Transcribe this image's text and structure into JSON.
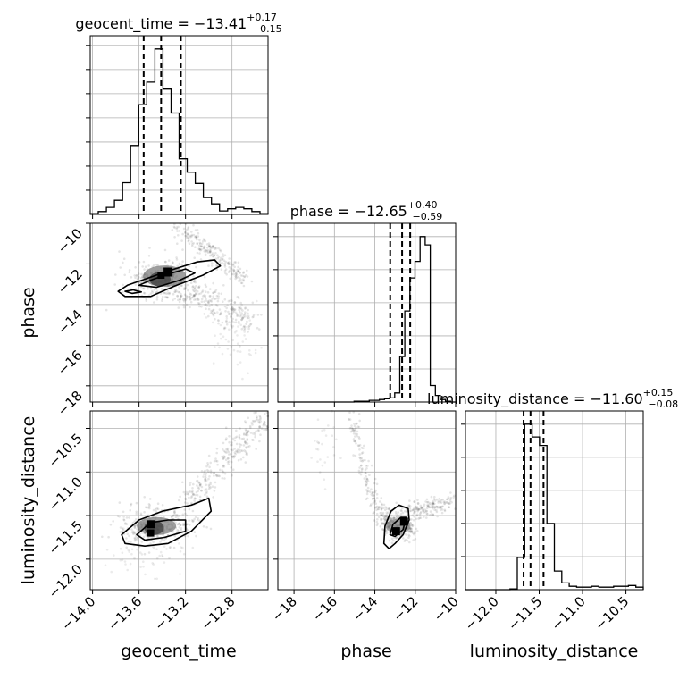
{
  "chart_data": {
    "type": "corner",
    "grid": true,
    "parameters": [
      {
        "name": "geocent_time",
        "median": -13.41,
        "err_plus": 0.17,
        "err_minus": 0.15,
        "quantiles": [
          -13.56,
          -13.41,
          -13.24
        ],
        "title_main": "geocent_time = −13.41",
        "title_plus": "+0.17",
        "title_minus": "−0.15",
        "range": [
          -14.02,
          -12.49
        ],
        "ticks": [
          -14.0,
          -13.6,
          -13.2,
          -12.8
        ],
        "tick_labels": [
          "−14.0",
          "−13.6",
          "−13.2",
          "−12.8"
        ],
        "hist_values": [
          1,
          4,
          10,
          20,
          45,
          98,
          156,
          188,
          235,
          178,
          144,
          79,
          60,
          44,
          24,
          15,
          5,
          8,
          10,
          8,
          4,
          1
        ]
      },
      {
        "name": "phase",
        "median": -12.65,
        "err_plus": 0.4,
        "err_minus": 0.59,
        "quantiles": [
          -13.24,
          -12.65,
          -12.25
        ],
        "title_main": "phase = −12.65",
        "title_plus": "+0.40",
        "title_minus": "−0.59",
        "range": [
          -18.8,
          -10.0
        ],
        "ticks": [
          -18,
          -16,
          -14,
          -12,
          -10
        ],
        "tick_labels": [
          "−18",
          "−16",
          "−14",
          "−12",
          "−10"
        ],
        "hist_values": [
          0,
          0,
          0,
          0,
          0,
          0,
          0,
          0,
          0,
          0,
          0,
          0,
          0,
          0,
          0,
          1,
          1,
          1,
          2,
          2,
          3,
          4,
          5,
          11,
          55,
          110,
          150,
          170,
          200,
          190,
          20,
          8,
          3,
          1,
          0
        ]
      },
      {
        "name": "luminosity_distance",
        "median": -11.6,
        "err_plus": 0.15,
        "err_minus": 0.08,
        "quantiles": [
          -11.68,
          -11.6,
          -11.45
        ],
        "title_main": "luminosity_distance = −11.60",
        "title_plus": "+0.15",
        "title_minus": "−0.08",
        "range": [
          -12.35,
          -10.3
        ],
        "ticks": [
          -12.0,
          -11.5,
          -11.0,
          -10.5
        ],
        "tick_labels": [
          "−12.0",
          "−11.5",
          "−11.0",
          "−10.5"
        ],
        "hist_values": [
          0,
          0,
          0,
          0,
          0,
          0,
          1,
          38,
          195,
          180,
          170,
          78,
          22,
          8,
          4,
          3,
          3,
          4,
          3,
          3,
          4,
          4,
          5,
          3
        ]
      }
    ],
    "pairs": [
      {
        "x": "geocent_time",
        "y": "phase"
      },
      {
        "x": "geocent_time",
        "y": "luminosity_distance"
      },
      {
        "x": "phase",
        "y": "luminosity_distance"
      }
    ]
  }
}
